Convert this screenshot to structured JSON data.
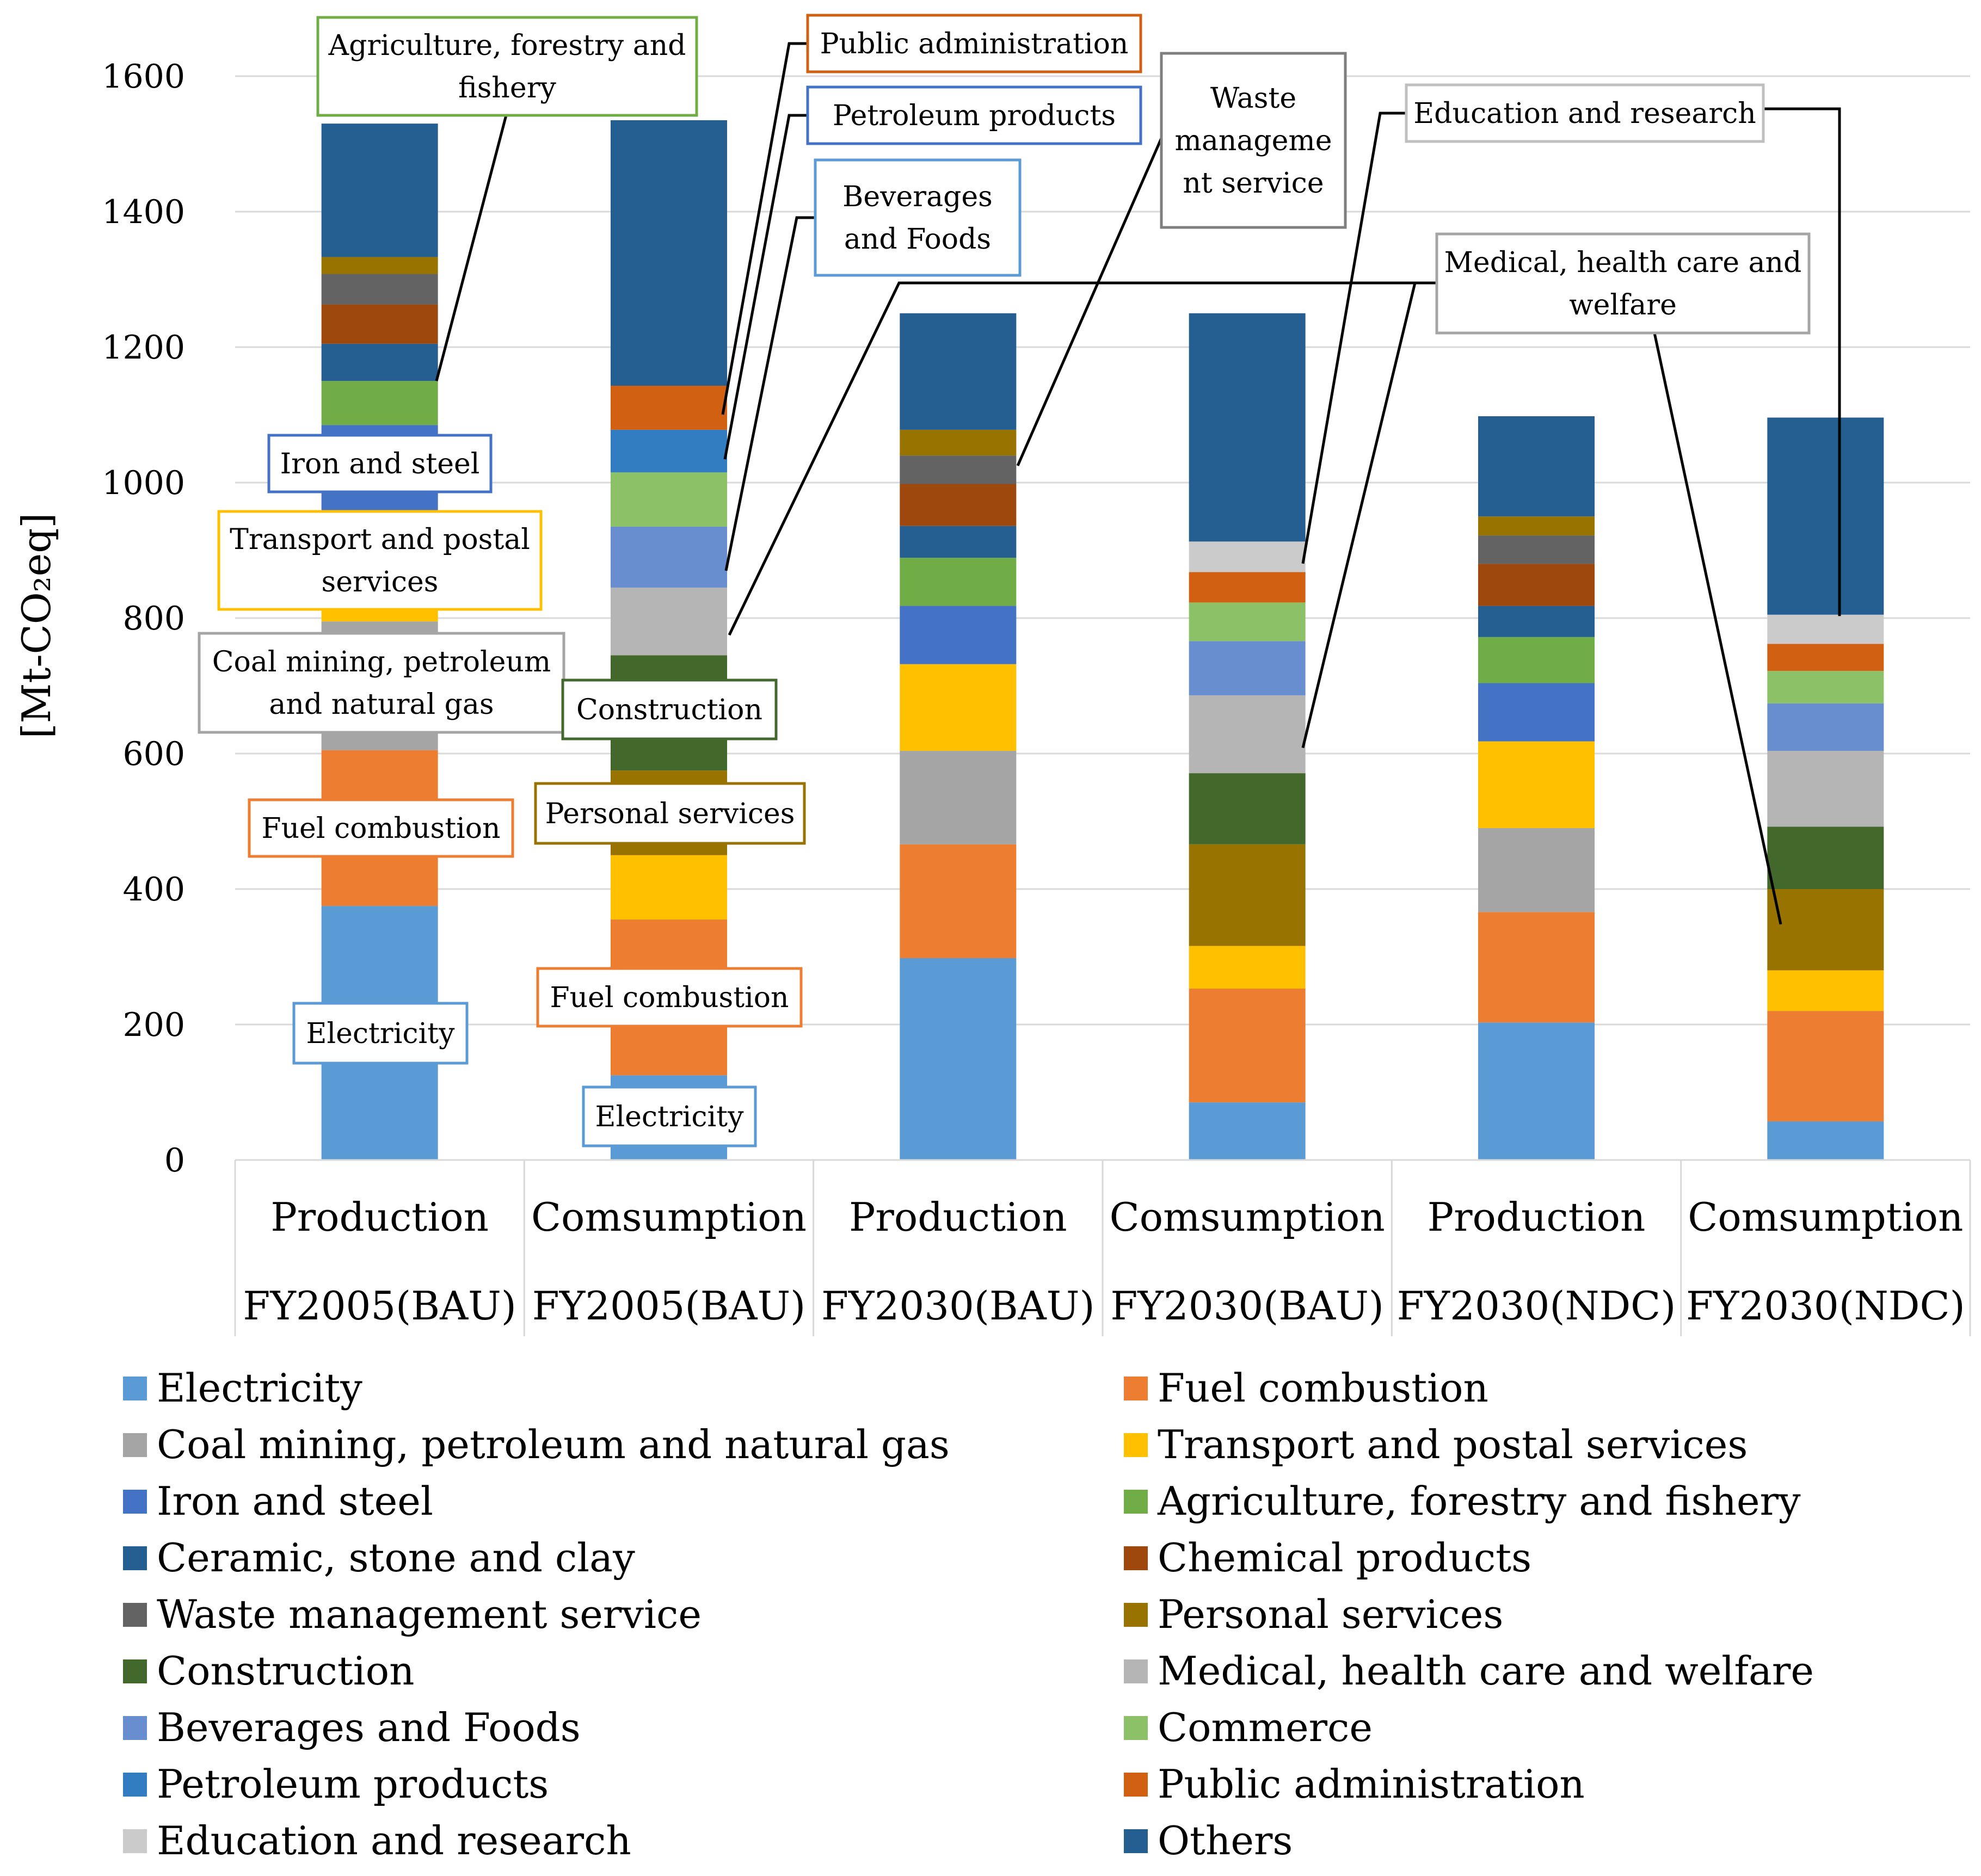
{
  "chart_data": {
    "type": "stacked-bar",
    "ylabel": "[Mt-CO₂eq]",
    "ylim": [
      0,
      1600
    ],
    "yticks": [
      0,
      200,
      400,
      600,
      800,
      1000,
      1200,
      1400,
      1600
    ],
    "categories": [
      {
        "top": "Production",
        "bottom": "FY2005(BAU)"
      },
      {
        "top": "Comsumption",
        "bottom": "FY2005(BAU)"
      },
      {
        "top": "Production",
        "bottom": "FY2030(BAU)"
      },
      {
        "top": "Comsumption",
        "bottom": "FY2030(BAU)"
      },
      {
        "top": "Production",
        "bottom": "FY2030(NDC)"
      },
      {
        "top": "Comsumption",
        "bottom": "FY2030(NDC)"
      }
    ],
    "series": [
      {
        "name": "Electricity",
        "color": "#5B9BD5",
        "values": [
          375,
          125,
          298,
          85,
          203,
          57
        ]
      },
      {
        "name": "Fuel combustion",
        "color": "#ED7D31",
        "values": [
          230,
          230,
          168,
          168,
          163,
          163
        ]
      },
      {
        "name": "Coal mining, petroleum and natural gas",
        "color": "#A5A5A5",
        "values": [
          190,
          0,
          138,
          0,
          124,
          0
        ]
      },
      {
        "name": "Transport and postal services",
        "color": "#FFC000",
        "values": [
          150,
          95,
          128,
          63,
          128,
          60
        ]
      },
      {
        "name": "Iron and steel",
        "color": "#4472C4",
        "values": [
          140,
          0,
          86,
          0,
          86,
          0
        ]
      },
      {
        "name": "Agriculture, forestry and fishery",
        "color": "#70AD47",
        "values": [
          65,
          0,
          71,
          0,
          68,
          0
        ]
      },
      {
        "name": "Ceramic, stone and clay",
        "color": "#255E91",
        "values": [
          55,
          0,
          47,
          0,
          46,
          0
        ]
      },
      {
        "name": "Chemical products",
        "color": "#9E480E",
        "values": [
          58,
          0,
          62,
          0,
          62,
          0
        ]
      },
      {
        "name": "Waste management service",
        "color": "#636363",
        "values": [
          45,
          0,
          42,
          0,
          42,
          0
        ]
      },
      {
        "name": "Personal services",
        "color": "#997300",
        "values": [
          25,
          125,
          38,
          150,
          28,
          120
        ]
      },
      {
        "name": "Construction",
        "color": "#43682B",
        "values": [
          0,
          170,
          0,
          105,
          0,
          92
        ]
      },
      {
        "name": "Medical, health care and welfare",
        "color": "#B5B5B5",
        "values": [
          0,
          100,
          0,
          115,
          0,
          112
        ]
      },
      {
        "name": "Beverages and Foods",
        "color": "#698ED0",
        "values": [
          0,
          90,
          0,
          80,
          0,
          70
        ]
      },
      {
        "name": "Commerce",
        "color": "#8CC168",
        "values": [
          0,
          80,
          0,
          57,
          0,
          48
        ]
      },
      {
        "name": "Petroleum products",
        "color": "#327DC2",
        "values": [
          0,
          63,
          0,
          0,
          0,
          0
        ]
      },
      {
        "name": "Public administration",
        "color": "#D26012",
        "values": [
          0,
          65,
          0,
          45,
          0,
          40
        ]
      },
      {
        "name": "Education and research",
        "color": "#CBCBCB",
        "values": [
          0,
          0,
          0,
          45,
          0,
          43
        ]
      },
      {
        "name": "Others",
        "color": "#255E91",
        "values": [
          197,
          392,
          172,
          337,
          148,
          291
        ]
      }
    ],
    "annotations": [
      {
        "text": "Agriculture, forestry and fishery",
        "color": "#70AD47"
      },
      {
        "text": "Public administration",
        "color": "#D26012"
      },
      {
        "text": "Petroleum products",
        "color": "#4472C4"
      },
      {
        "text": "Beverages and Foods",
        "color": "#5B9BD5"
      },
      {
        "text": "Waste management service",
        "color": "#7F7F7F"
      },
      {
        "text": "Education and research",
        "color": "#BFBFBF"
      },
      {
        "text": "Medical, health care and welfare",
        "color": "#A5A5A5"
      },
      {
        "text": "Iron and steel",
        "color": "#4472C4"
      },
      {
        "text": "Transport and postal services",
        "color": "#FFC000"
      },
      {
        "text": "Coal mining, petroleum and natural gas",
        "color": "#A5A5A5"
      },
      {
        "text": "Construction",
        "color": "#43682B"
      },
      {
        "text": "Personal services",
        "color": "#997300"
      },
      {
        "text": "Fuel combustion",
        "color": "#ED7D31"
      },
      {
        "text": "Fuel combustion",
        "color": "#ED7D31"
      },
      {
        "text": "Electricity",
        "color": "#5B9BD5"
      },
      {
        "text": "Electricity",
        "color": "#5B9BD5"
      }
    ]
  }
}
